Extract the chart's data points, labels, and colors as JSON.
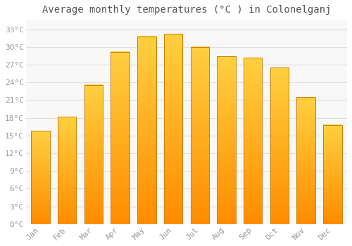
{
  "title": "Average monthly temperatures (°C ) in Colonelganj",
  "months": [
    "Jan",
    "Feb",
    "Mar",
    "Apr",
    "May",
    "Jun",
    "Jul",
    "Aug",
    "Sep",
    "Oct",
    "Nov",
    "Dec"
  ],
  "values": [
    15.8,
    18.2,
    23.6,
    29.2,
    31.8,
    32.2,
    30.0,
    28.4,
    28.2,
    26.5,
    21.5,
    16.8
  ],
  "bar_color_main": "#FFAA00",
  "bar_color_edge": "#E08000",
  "background_color": "#FFFFFF",
  "plot_bg_color": "#F8F8F8",
  "grid_color": "#E0E0E0",
  "text_color": "#999999",
  "title_color": "#555555",
  "yticks": [
    0,
    3,
    6,
    9,
    12,
    15,
    18,
    21,
    24,
    27,
    30,
    33
  ],
  "ylim": [
    0,
    34.5
  ],
  "title_fontsize": 10,
  "tick_fontsize": 8,
  "bar_width": 0.7,
  "font_family": "monospace"
}
